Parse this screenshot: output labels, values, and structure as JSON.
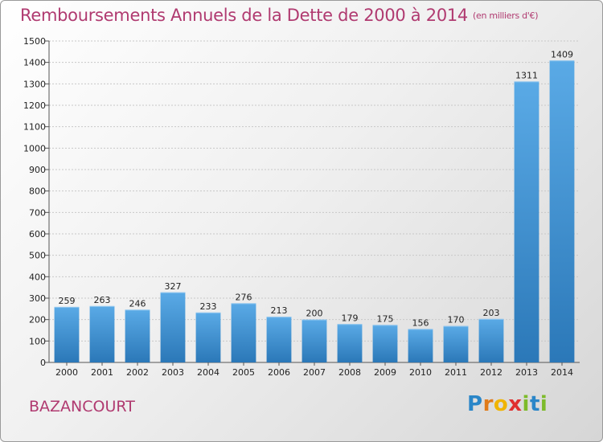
{
  "title": "Remboursements Annuels de la Dette de 2000 à 2014",
  "unit": "(en milliers d'€)",
  "city": "BAZANCOURT",
  "logo": [
    "P",
    "r",
    "o",
    "x",
    "i",
    "t",
    "i"
  ],
  "chart_data": {
    "type": "bar",
    "title": "Remboursements Annuels de la Dette de 2000 à 2014",
    "subtitle": "(en milliers d'€)",
    "xlabel": "",
    "ylabel": "",
    "categories": [
      "2000",
      "2001",
      "2002",
      "2003",
      "2004",
      "2005",
      "2006",
      "2007",
      "2008",
      "2009",
      "2010",
      "2011",
      "2012",
      "2013",
      "2014"
    ],
    "values": [
      259,
      263,
      246,
      327,
      233,
      276,
      213,
      200,
      179,
      175,
      156,
      170,
      203,
      1311,
      1409
    ],
    "ylim": [
      0,
      1500
    ],
    "yticks": [
      0,
      100,
      200,
      300,
      400,
      500,
      600,
      700,
      800,
      900,
      1000,
      1100,
      1200,
      1300,
      1400,
      1500
    ],
    "grid": true,
    "bar_color": "#3f8fd0"
  }
}
